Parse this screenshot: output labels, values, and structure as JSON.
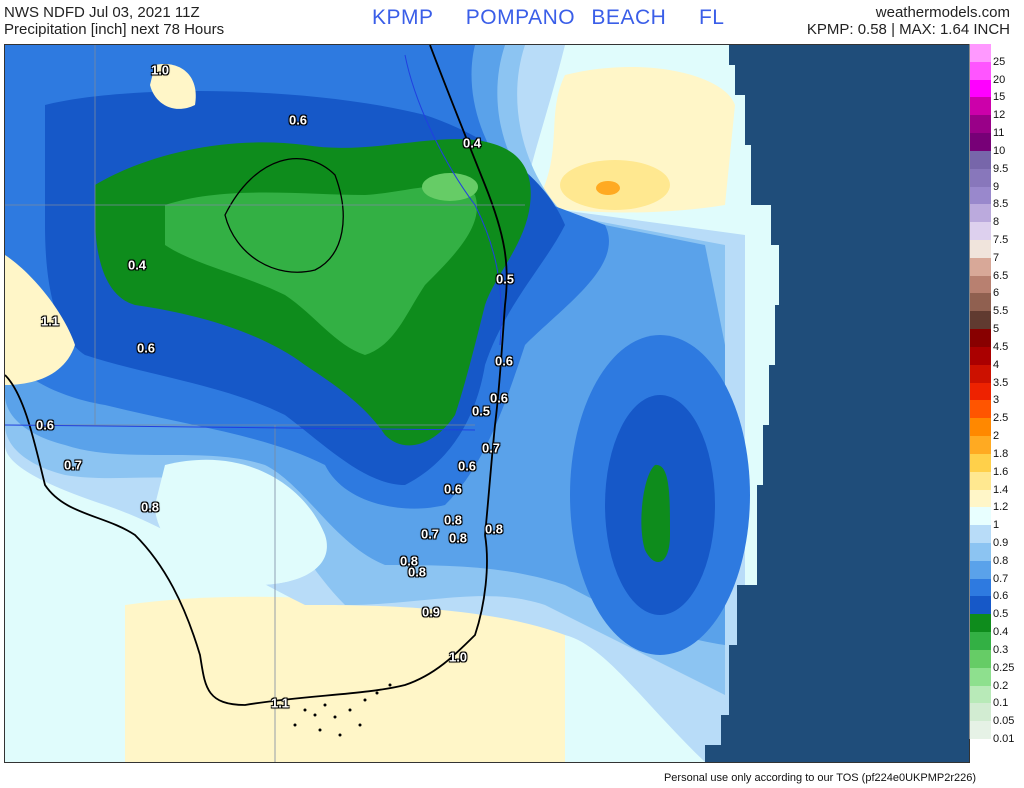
{
  "header": {
    "left_line1": "NWS NDFD Jul 03, 2021 11Z",
    "left_line2": "Precipitation [inch] next 78 Hours",
    "center": "KPMP  POMPANO BEACH  FL",
    "right_line1": "weathermodels.com",
    "right_line2": "KPMP: 0.58 | MAX: 1.64 INCH"
  },
  "map": {
    "contour_labels": [
      "1.0",
      "0.6",
      "0.4",
      "0.4",
      "0.5",
      "1.1",
      "0.6",
      "0.6",
      "0.6",
      "0.5",
      "0.6",
      "0.7",
      "0.7",
      "0.6",
      "0.6",
      "0.8",
      "0.8",
      "0.7",
      "0.8",
      "0.8",
      "0.8",
      "0.8",
      "0.9",
      "1.0",
      "1.1"
    ],
    "ocean_color": "#1f4d7a"
  },
  "legend": {
    "labels": [
      "25",
      "20",
      "15",
      "12",
      "11",
      "10",
      "9.5",
      "9",
      "8.5",
      "8",
      "7.5",
      "7",
      "6.5",
      "6",
      "5.5",
      "5",
      "4.5",
      "4",
      "3.5",
      "3",
      "2.5",
      "2",
      "1.8",
      "1.6",
      "1.4",
      "1.2",
      "1",
      "0.9",
      "0.8",
      "0.7",
      "0.6",
      "0.5",
      "0.4",
      "0.3",
      "0.25",
      "0.2",
      "0.1",
      "0.05",
      "0.01"
    ],
    "colors": [
      "#ff99ff",
      "#ff55ff",
      "#ff00ff",
      "#cc00aa",
      "#990088",
      "#770077",
      "#7766aa",
      "#8877bb",
      "#9988cc",
      "#bbaadd",
      "#ddd0ee",
      "#f0e4dc",
      "#d8a898",
      "#b88070",
      "#906050",
      "#603a30",
      "#880000",
      "#aa0000",
      "#cc1100",
      "#ee2200",
      "#ff5500",
      "#ff8800",
      "#ffaa22",
      "#ffd04a",
      "#ffe890",
      "#fff6c8",
      "#e8ffff",
      "#b8dcf8",
      "#8cc4f2",
      "#5aa2ea",
      "#2e7ae0",
      "#1658c8",
      "#0e8c1c",
      "#33b044",
      "#66cc66",
      "#8ee08e",
      "#b8eab8",
      "#d2ecd2",
      "#e6f2e6"
    ]
  },
  "footer": "Personal use only according to our TOS (pf224e0UKPMP2r226)"
}
